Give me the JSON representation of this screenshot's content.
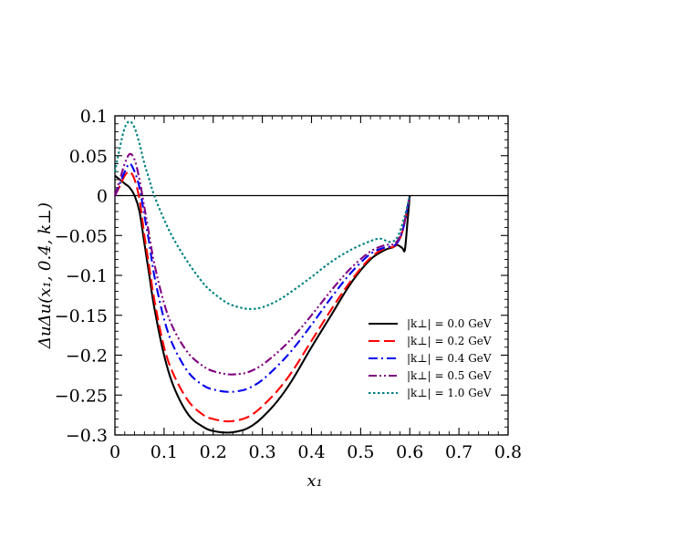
{
  "chart_data": {
    "type": "line",
    "xlabel": "x₁",
    "ylabel": "ΔuΔu(x₁, 0.4, k⊥)",
    "xlim": [
      0,
      0.8
    ],
    "ylim": [
      -0.3,
      0.1
    ],
    "xticks": [
      0,
      0.1,
      0.2,
      0.3,
      0.4,
      0.5,
      0.6,
      0.7,
      0.8
    ],
    "xtick_labels": [
      "0",
      "0.1",
      "0.2",
      "0.3",
      "0.4",
      "0.5",
      "0.6",
      "0.7",
      "0.8"
    ],
    "yticks": [
      0.1,
      0.05,
      0,
      -0.05,
      -0.1,
      -0.15,
      -0.2,
      -0.25,
      -0.3
    ],
    "ytick_labels": [
      "0.1",
      "0.05",
      "0",
      "−0.05",
      "−0.1",
      "−0.15",
      "−0.2",
      "−0.25",
      "−0.3"
    ],
    "zero_line": true,
    "grid": false,
    "legend_position": "center-right",
    "series": [
      {
        "name": "|k⊥| = 0.0 GeV",
        "color": "#000000",
        "dash": "solid",
        "x": [
          0,
          0.01,
          0.02,
          0.03,
          0.04,
          0.05,
          0.06,
          0.07,
          0.08,
          0.1,
          0.12,
          0.15,
          0.18,
          0.2,
          0.23,
          0.26,
          0.28,
          0.3,
          0.33,
          0.36,
          0.4,
          0.44,
          0.48,
          0.52,
          0.55,
          0.565,
          0.575,
          0.585,
          0.59,
          0.595,
          0.6
        ],
        "y": [
          0.025,
          0.02,
          0.015,
          0.01,
          0.0,
          -0.02,
          -0.06,
          -0.1,
          -0.14,
          -0.2,
          -0.24,
          -0.275,
          -0.29,
          -0.295,
          -0.297,
          -0.294,
          -0.288,
          -0.278,
          -0.258,
          -0.232,
          -0.19,
          -0.15,
          -0.11,
          -0.08,
          -0.068,
          -0.065,
          -0.062,
          -0.066,
          -0.068,
          -0.035,
          0.0
        ]
      },
      {
        "name": "|k⊥| = 0.2 GeV",
        "color": "#ff0000",
        "dash": "long-dash",
        "x": [
          0,
          0.01,
          0.02,
          0.03,
          0.04,
          0.05,
          0.06,
          0.07,
          0.08,
          0.1,
          0.12,
          0.15,
          0.18,
          0.2,
          0.23,
          0.26,
          0.28,
          0.3,
          0.33,
          0.36,
          0.4,
          0.44,
          0.48,
          0.52,
          0.55,
          0.57,
          0.585,
          0.6
        ],
        "y": [
          0.0,
          0.012,
          0.025,
          0.03,
          0.02,
          -0.005,
          -0.05,
          -0.09,
          -0.13,
          -0.19,
          -0.225,
          -0.258,
          -0.275,
          -0.28,
          -0.283,
          -0.28,
          -0.274,
          -0.264,
          -0.245,
          -0.221,
          -0.182,
          -0.143,
          -0.107,
          -0.078,
          -0.066,
          -0.063,
          -0.045,
          0.0
        ]
      },
      {
        "name": "|k⊥| = 0.4 GeV",
        "color": "#0000ee",
        "dash": "dash-dot",
        "x": [
          0,
          0.01,
          0.02,
          0.03,
          0.04,
          0.05,
          0.06,
          0.07,
          0.08,
          0.1,
          0.12,
          0.15,
          0.18,
          0.2,
          0.23,
          0.26,
          0.28,
          0.3,
          0.33,
          0.36,
          0.4,
          0.44,
          0.48,
          0.52,
          0.55,
          0.57,
          0.585,
          0.6
        ],
        "y": [
          0.0,
          0.015,
          0.03,
          0.04,
          0.03,
          0.01,
          -0.025,
          -0.06,
          -0.1,
          -0.155,
          -0.19,
          -0.222,
          -0.238,
          -0.243,
          -0.246,
          -0.244,
          -0.239,
          -0.231,
          -0.214,
          -0.194,
          -0.162,
          -0.128,
          -0.097,
          -0.073,
          -0.065,
          -0.062,
          -0.045,
          0.0
        ]
      },
      {
        "name": "|k⊥| = 0.5 GeV",
        "color": "#800080",
        "dash": "dash-dot-dot",
        "x": [
          0,
          0.01,
          0.02,
          0.03,
          0.04,
          0.05,
          0.06,
          0.07,
          0.08,
          0.1,
          0.12,
          0.15,
          0.18,
          0.2,
          0.23,
          0.26,
          0.28,
          0.3,
          0.33,
          0.36,
          0.4,
          0.44,
          0.48,
          0.52,
          0.55,
          0.57,
          0.585,
          0.6
        ],
        "y": [
          0.0,
          0.02,
          0.04,
          0.052,
          0.045,
          0.02,
          -0.015,
          -0.05,
          -0.085,
          -0.135,
          -0.168,
          -0.198,
          -0.214,
          -0.22,
          -0.224,
          -0.223,
          -0.219,
          -0.212,
          -0.197,
          -0.179,
          -0.15,
          -0.119,
          -0.091,
          -0.07,
          -0.062,
          -0.06,
          -0.043,
          0.0
        ]
      },
      {
        "name": "|k⊥| = 1.0 GeV",
        "color": "#008080",
        "dash": "dotted",
        "x": [
          0,
          0.01,
          0.02,
          0.03,
          0.04,
          0.05,
          0.06,
          0.07,
          0.08,
          0.1,
          0.12,
          0.15,
          0.18,
          0.2,
          0.23,
          0.26,
          0.28,
          0.3,
          0.33,
          0.36,
          0.4,
          0.44,
          0.48,
          0.52,
          0.54,
          0.56,
          0.575,
          0.59,
          0.6
        ],
        "y": [
          0.03,
          0.06,
          0.085,
          0.093,
          0.085,
          0.065,
          0.04,
          0.02,
          0.0,
          -0.03,
          -0.055,
          -0.085,
          -0.11,
          -0.122,
          -0.135,
          -0.141,
          -0.142,
          -0.14,
          -0.132,
          -0.12,
          -0.102,
          -0.083,
          -0.068,
          -0.057,
          -0.054,
          -0.058,
          -0.052,
          -0.025,
          0.0
        ]
      }
    ]
  }
}
